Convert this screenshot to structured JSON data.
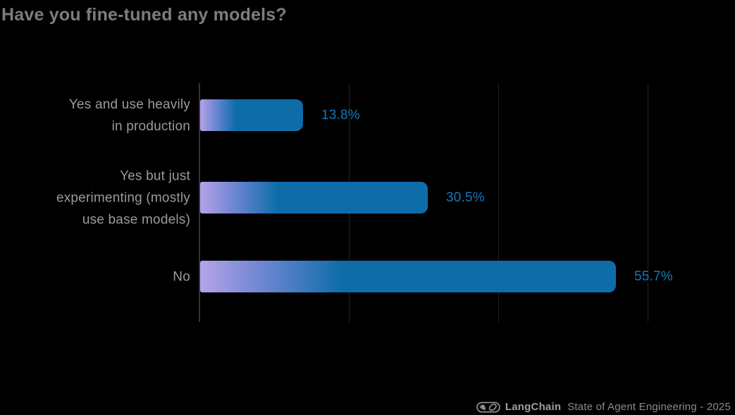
{
  "title": "Have you fine-tuned any models?",
  "chart_data": {
    "type": "bar",
    "orientation": "horizontal",
    "title": "Have you fine-tuned any models?",
    "categories": [
      [
        "Yes and use heavily",
        "in production"
      ],
      [
        "Yes but just",
        "experimenting (mostly",
        "use base models)"
      ],
      [
        "No"
      ]
    ],
    "values": [
      13.8,
      30.5,
      55.7
    ],
    "value_labels": [
      "13.8%",
      "30.5%",
      "55.7%"
    ],
    "xlabel": "",
    "ylabel": "",
    "xlim": [
      0,
      60
    ],
    "gridlines": "vertical, unlabeled, at 20% intervals",
    "legend": "none",
    "colors": {
      "background": "#000000",
      "bar_gradient_start": "#b5a3ea",
      "bar_gradient_end": "#0e6da9",
      "value_label": "#1478bc",
      "category_label": "#9b9b9b",
      "title": "#7d7d7d",
      "gridline": "#232323",
      "axis": "#343434"
    }
  },
  "footer": {
    "brand": "LangChain",
    "report": "State of Agent Engineering - 2025",
    "logo": "langchain-bird-chainlink-icon"
  }
}
